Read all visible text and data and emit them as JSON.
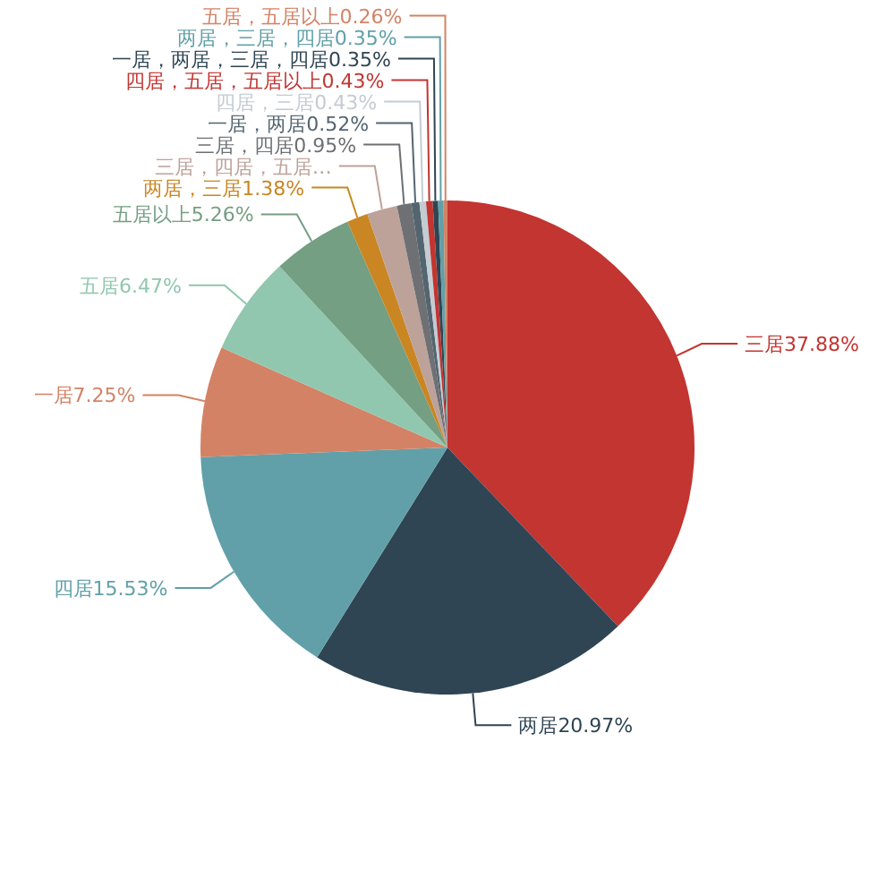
{
  "chart_data": {
    "type": "pie",
    "categories": [
      "三居",
      "两居",
      "四居",
      "一居",
      "五居",
      "五居以上",
      "两居，三居",
      "三居，四居，五居…",
      "三居，四居",
      "一居，两居",
      "四居，三居",
      "四居，五居，五居以上",
      "一居，两居，三居，四居",
      "两居，三居，四居",
      "五居，五居以上"
    ],
    "values": [
      37.88,
      20.97,
      15.53,
      7.25,
      6.47,
      5.26,
      1.38,
      1.97,
      0.95,
      0.52,
      0.43,
      0.43,
      0.35,
      0.35,
      0.26
    ],
    "value_labels": [
      "37.88%",
      "20.97%",
      "15.53%",
      "7.25%",
      "6.47%",
      "5.26%",
      "1.38%",
      null,
      "0.95%",
      "0.52%",
      "0.43%",
      "0.43%",
      "0.35%",
      "0.35%",
      "0.26%"
    ],
    "colors": [
      "#c23531",
      "#2f4554",
      "#61a0a8",
      "#d48265",
      "#91c7ae",
      "#749f83",
      "#ca8622",
      "#bda29a",
      "#6e7074",
      "#546570",
      "#c4ccd3",
      "#c23531",
      "#2f4554",
      "#61a0a8",
      "#d48265"
    ]
  }
}
